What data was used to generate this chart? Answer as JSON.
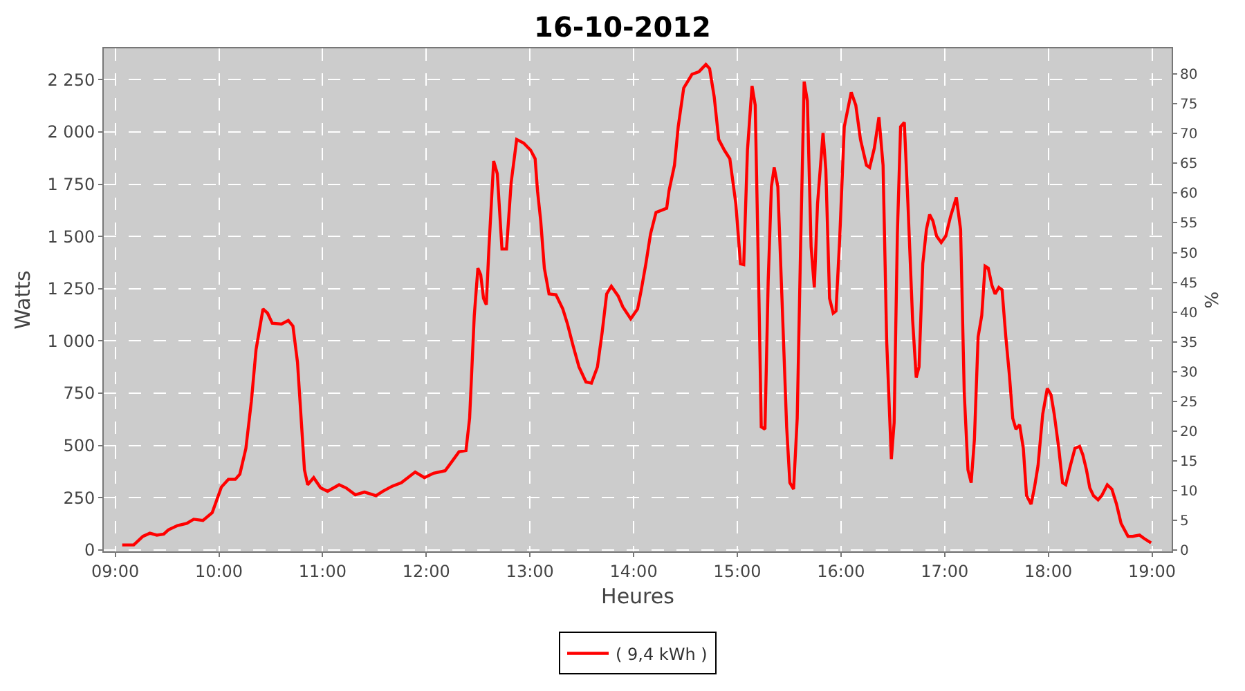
{
  "chart_data": {
    "type": "line",
    "title": "16-10-2012",
    "xlabel": "Heures",
    "ylabel": "Watts",
    "y2label": "%",
    "xlim": [
      8.889,
      19.19
    ],
    "xticks": [
      {
        "value": 9,
        "label": "09:00"
      },
      {
        "value": 10,
        "label": "10:00"
      },
      {
        "value": 11,
        "label": "11:00"
      },
      {
        "value": 12,
        "label": "12:00"
      },
      {
        "value": 13,
        "label": "13:00"
      },
      {
        "value": 14,
        "label": "14:00"
      },
      {
        "value": 15,
        "label": "15:00"
      },
      {
        "value": 16,
        "label": "16:00"
      },
      {
        "value": 17,
        "label": "17:00"
      },
      {
        "value": 18,
        "label": "18:00"
      },
      {
        "value": 19,
        "label": "19:00"
      }
    ],
    "ylim": [
      -7,
      2400
    ],
    "yticks": [
      0,
      250,
      500,
      750,
      {
        "value": 1000,
        "label": "1 000"
      },
      {
        "value": 1250,
        "label": "1 250"
      },
      {
        "value": 1500,
        "label": "1 500"
      },
      {
        "value": 1750,
        "label": "1 750"
      },
      {
        "value": 2000,
        "label": "2 000"
      },
      {
        "value": 2250,
        "label": "2 250"
      }
    ],
    "y2lim": [
      -0.2,
      84.3
    ],
    "y2ticks": [
      0,
      5,
      10,
      15,
      20,
      25,
      30,
      35,
      40,
      45,
      50,
      55,
      60,
      65,
      70,
      75,
      80
    ],
    "grid": true,
    "legend": "bottom",
    "line_style": "solid",
    "x": [
      9.067,
      9.178,
      9.267,
      9.334,
      9.401,
      9.468,
      9.512,
      9.601,
      9.69,
      9.757,
      9.846,
      9.935,
      9.98,
      10.024,
      10.091,
      10.158,
      10.202,
      10.26,
      10.313,
      10.358,
      10.425,
      10.469,
      10.514,
      10.603,
      10.669,
      10.714,
      10.758,
      10.825,
      10.856,
      10.914,
      10.981,
      11.048,
      11.159,
      11.226,
      11.315,
      11.404,
      11.515,
      11.582,
      11.671,
      11.76,
      11.893,
      11.982,
      12.071,
      12.182,
      12.249,
      12.316,
      12.383,
      12.418,
      12.463,
      12.498,
      12.525,
      12.552,
      12.579,
      12.605,
      12.65,
      12.685,
      12.73,
      12.774,
      12.819,
      12.872,
      12.939,
      13.006,
      13.05,
      13.073,
      13.104,
      13.139,
      13.184,
      13.251,
      13.317,
      13.362,
      13.415,
      13.473,
      13.54,
      13.593,
      13.651,
      13.696,
      13.74,
      13.785,
      13.851,
      13.896,
      13.972,
      14.038,
      14.074,
      14.118,
      14.163,
      14.216,
      14.319,
      14.341,
      14.394,
      14.43,
      14.483,
      14.563,
      14.63,
      14.697,
      14.733,
      14.777,
      14.821,
      14.875,
      14.928,
      14.986,
      15.031,
      15.062,
      15.098,
      15.142,
      15.173,
      15.209,
      15.231,
      15.267,
      15.298,
      15.329,
      15.356,
      15.391,
      15.431,
      15.476,
      15.507,
      15.543,
      15.578,
      15.609,
      15.645,
      15.676,
      15.712,
      15.743,
      15.774,
      15.827,
      15.854,
      15.89,
      15.925,
      15.952,
      15.988,
      16.032,
      16.099,
      16.143,
      16.188,
      16.246,
      16.277,
      16.322,
      16.366,
      16.406,
      16.441,
      16.486,
      16.513,
      16.544,
      16.575,
      16.611,
      16.646,
      16.691,
      16.726,
      16.753,
      16.789,
      16.824,
      16.855,
      16.887,
      16.922,
      16.967,
      17.011,
      17.056,
      17.113,
      17.154,
      17.189,
      17.225,
      17.256,
      17.287,
      17.323,
      17.358,
      17.39,
      17.421,
      17.456,
      17.487,
      17.523,
      17.554,
      17.59,
      17.625,
      17.657,
      17.688,
      17.723,
      17.759,
      17.79,
      17.834,
      17.866,
      17.901,
      17.946,
      17.99,
      18.026,
      18.057,
      18.101,
      18.137,
      18.168,
      18.213,
      18.257,
      18.302,
      18.333,
      18.368,
      18.4,
      18.435,
      18.48,
      18.515,
      18.569,
      18.613,
      18.658,
      18.702,
      18.769,
      18.813,
      18.88,
      18.924,
      18.991
    ],
    "series": [
      {
        "name": "( 9,4 kWh )",
        "color": "#ff0000",
        "values": [
          24,
          24,
          65,
          80,
          71,
          76,
          96,
          117,
          127,
          147,
          141,
          178,
          240,
          301,
          338,
          338,
          363,
          486,
          712,
          958,
          1153,
          1133,
          1085,
          1081,
          1098,
          1071,
          897,
          383,
          312,
          346,
          297,
          281,
          312,
          297,
          264,
          277,
          260,
          281,
          305,
          322,
          373,
          346,
          367,
          379,
          424,
          470,
          476,
          630,
          1122,
          1348,
          1317,
          1204,
          1174,
          1451,
          1861,
          1800,
          1440,
          1440,
          1759,
          1964,
          1947,
          1913,
          1872,
          1718,
          1574,
          1348,
          1225,
          1221,
          1153,
          1081,
          979,
          876,
          804,
          798,
          876,
          1040,
          1225,
          1262,
          1215,
          1163,
          1106,
          1153,
          1245,
          1369,
          1512,
          1615,
          1635,
          1718,
          1841,
          2025,
          2210,
          2276,
          2288,
          2323,
          2303,
          2169,
          1964,
          1913,
          1872,
          1656,
          1369,
          1365,
          1913,
          2220,
          2128,
          1204,
          589,
          578,
          1287,
          1738,
          1830,
          1738,
          1204,
          589,
          322,
          291,
          630,
          1410,
          2241,
          2149,
          1451,
          1256,
          1656,
          1995,
          1820,
          1204,
          1133,
          1143,
          1492,
          2025,
          2190,
          2128,
          1964,
          1841,
          1830,
          1923,
          2071,
          1841,
          999,
          435,
          609,
          1512,
          2025,
          2046,
          1656,
          1102,
          825,
          876,
          1369,
          1533,
          1605,
          1574,
          1502,
          1471,
          1502,
          1594,
          1687,
          1533,
          753,
          383,
          322,
          527,
          1020,
          1122,
          1358,
          1348,
          1266,
          1225,
          1256,
          1245,
          1020,
          835,
          630,
          578,
          599,
          486,
          260,
          219,
          297,
          404,
          650,
          773,
          743,
          650,
          486,
          322,
          312,
          404,
          486,
          496,
          455,
          383,
          297,
          260,
          240,
          260,
          312,
          291,
          219,
          127,
          65,
          65,
          71,
          55,
          34
        ]
      }
    ]
  }
}
